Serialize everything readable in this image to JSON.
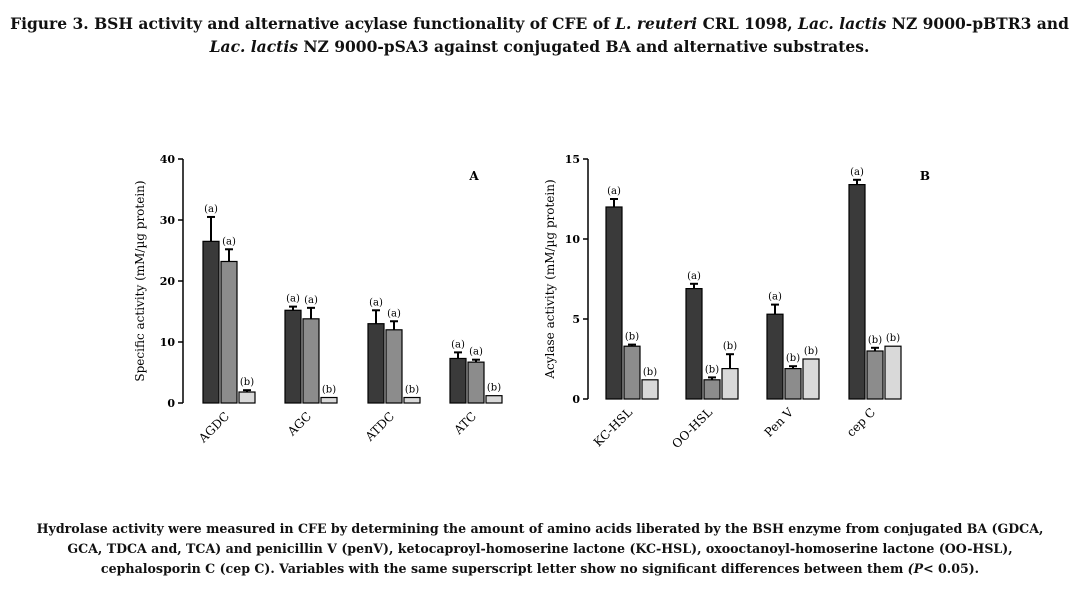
{
  "figure": {
    "title_parts": [
      {
        "text": "Figure 3. BSH activity and alternative acylase functionality of CFE of ",
        "italic": false
      },
      {
        "text": "L. reuteri",
        "italic": true
      },
      {
        "text": " CRL 1098, ",
        "italic": false
      },
      {
        "text": "Lac. lactis",
        "italic": true
      },
      {
        "text": " NZ 9000-pBTR3 and",
        "italic": false
      },
      {
        "text": "\n",
        "italic": false
      },
      {
        "text": "Lac. lactis",
        "italic": true
      },
      {
        "text": " NZ 9000-pSA3 against conjugated BA and alternative substrates.",
        "italic": false
      }
    ],
    "caption_parts": [
      {
        "text": "Hydrolase activity were measured in CFE by determining the amount of amino acids liberated by the BSH enzyme from conjugated BA (GDCA, GCA, TDCA and, TCA) and penicillin V (penV), ketocaproyl-homoserine lactone (KC-HSL), oxooctanoyl-homoserine lactone (OO-HSL), cephalosporin C (cep C). Variables with the same superscript letter show no significant differences between them ",
        "italic": false
      },
      {
        "text": "(P",
        "italic": true
      },
      {
        "text": "< 0.05).",
        "italic": false
      }
    ]
  },
  "chart_data": [
    {
      "type": "bar",
      "panel_label": "A",
      "ylabel": "Specific activity (mM/µg protein)",
      "ylim": [
        0,
        40
      ],
      "yticks": [
        0,
        10,
        20,
        30,
        40
      ],
      "categories": [
        "AGDC",
        "AGC",
        "ATDC",
        "ATC"
      ],
      "series_colors": [
        "#3a3a3a",
        "#8c8c8c",
        "#d9d9d9"
      ],
      "series": [
        {
          "values": [
            26.5,
            15.2,
            13.0,
            7.3
          ],
          "errors": [
            4.0,
            0.6,
            2.2,
            1.0
          ],
          "letters": [
            "(a)",
            "(a)",
            "(a)",
            "(a)"
          ]
        },
        {
          "values": [
            23.2,
            13.8,
            12.0,
            6.7
          ],
          "errors": [
            2.0,
            1.8,
            1.4,
            0.4
          ],
          "letters": [
            "(a)",
            "(a)",
            "(a)",
            "(a)"
          ]
        },
        {
          "values": [
            1.8,
            0.9,
            0.9,
            1.2
          ],
          "errors": [
            0.3,
            0,
            0,
            0
          ],
          "letters": [
            "(b)",
            "(b)",
            "(b)",
            "(b)"
          ]
        }
      ],
      "legend": "none",
      "grid": false
    },
    {
      "type": "bar",
      "panel_label": "B",
      "ylabel": "Acylase activity (mM/µg protein)",
      "ylim": [
        0,
        15
      ],
      "yticks": [
        0,
        5,
        10,
        15
      ],
      "categories": [
        "KC-HSL",
        "OO-HSL",
        "Pen V",
        "cep C"
      ],
      "series_colors": [
        "#3a3a3a",
        "#8c8c8c",
        "#d9d9d9"
      ],
      "series": [
        {
          "values": [
            12.0,
            6.9,
            5.3,
            13.4
          ],
          "errors": [
            0.5,
            0.3,
            0.6,
            0.3
          ],
          "letters": [
            "(a)",
            "(a)",
            "(a)",
            "(a)"
          ]
        },
        {
          "values": [
            3.3,
            1.2,
            1.9,
            3.0
          ],
          "errors": [
            0.1,
            0.15,
            0.15,
            0.2
          ],
          "letters": [
            "(b)",
            "(b)",
            "(b)",
            "(b)"
          ]
        },
        {
          "values": [
            1.2,
            1.9,
            2.5,
            3.3
          ],
          "errors": [
            0,
            0.9,
            0,
            0
          ],
          "letters": [
            "(b)",
            "(b)",
            "(b)",
            "(b)"
          ]
        }
      ],
      "legend": "none",
      "grid": false
    }
  ]
}
